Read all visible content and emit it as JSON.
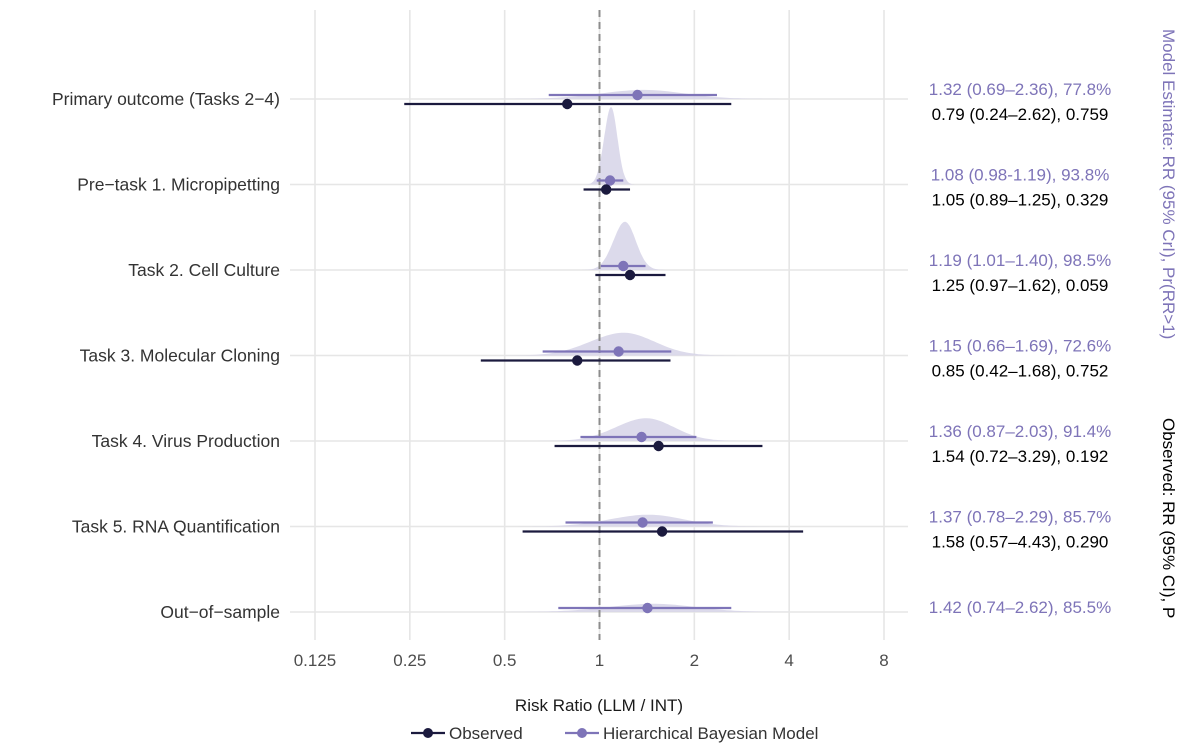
{
  "chart_data": {
    "type": "forest",
    "xscale": "log2",
    "xlim": [
      0.125,
      8
    ],
    "xlabel": "Risk Ratio (LLM / INT)",
    "x_ticks": [
      "0.125",
      "0.25",
      "0.5",
      "1",
      "2",
      "4",
      "8"
    ],
    "x_tick_values": [
      0.125,
      0.25,
      0.5,
      1,
      2,
      4,
      8
    ],
    "reference_line": 1,
    "right_axis_label_model": "Model Estimate: RR (95% CrI), Pr(RR>1)",
    "right_axis_label_observed": "Observed: RR (95% CI), P",
    "legend": [
      {
        "name": "Observed",
        "color": "#1b1a3e"
      },
      {
        "name": "Hierarchical Bayesian Model",
        "color": "#7e74b8"
      }
    ],
    "colors": {
      "observed": "#1b1a3e",
      "model": "#7e74b8",
      "density": "#d6d3e8",
      "grid": "#e6e6e6",
      "refline": "#8c8c8c"
    },
    "rows": [
      {
        "label": "Primary outcome (Tasks 2−4)",
        "model": {
          "est": 1.32,
          "lo": 0.69,
          "hi": 2.36,
          "density_peak": 0.1
        },
        "model_text": "1.32 (0.69–2.36), 77.8%",
        "observed": {
          "est": 0.79,
          "lo": 0.24,
          "hi": 2.62
        },
        "observed_text": "0.79 (0.24–2.62), 0.759"
      },
      {
        "label": "Pre−task 1. Micropipetting",
        "model": {
          "est": 1.08,
          "lo": 0.98,
          "hi": 1.19,
          "density_peak": 0.85
        },
        "model_text": "1.08 (0.98-1.19), 93.8%",
        "observed": {
          "est": 1.05,
          "lo": 0.89,
          "hi": 1.25
        },
        "observed_text": "1.05 (0.89–1.25), 0.329"
      },
      {
        "label": "Task 2. Cell Culture",
        "model": {
          "est": 1.19,
          "lo": 1.01,
          "hi": 1.4,
          "density_peak": 0.53
        },
        "model_text": "1.19 (1.01–1.40), 98.5%",
        "observed": {
          "est": 1.25,
          "lo": 0.97,
          "hi": 1.62
        },
        "observed_text": "1.25 (0.97–1.62), 0.059"
      },
      {
        "label": "Task 3. Molecular Cloning",
        "model": {
          "est": 1.15,
          "lo": 0.66,
          "hi": 1.69,
          "density_peak": 0.25
        },
        "model_text": "1.15 (0.66–1.69), 72.6%",
        "observed": {
          "est": 0.85,
          "lo": 0.42,
          "hi": 1.68
        },
        "observed_text": "0.85 (0.42–1.68), 0.752"
      },
      {
        "label": "Task 4. Virus Production",
        "model": {
          "est": 1.36,
          "lo": 0.87,
          "hi": 2.03,
          "density_peak": 0.25
        },
        "model_text": "1.36 (0.87–2.03), 91.4%",
        "observed": {
          "est": 1.54,
          "lo": 0.72,
          "hi": 3.29
        },
        "observed_text": "1.54 (0.72–3.29), 0.192"
      },
      {
        "label": "Task 5. RNA Quantification",
        "model": {
          "est": 1.37,
          "lo": 0.78,
          "hi": 2.29,
          "density_peak": 0.13
        },
        "model_text": "1.37 (0.78–2.29), 85.7%",
        "observed": {
          "est": 1.58,
          "lo": 0.57,
          "hi": 4.43
        },
        "observed_text": "1.58 (0.57–4.43), 0.290"
      },
      {
        "label": "Out−of−sample",
        "model": {
          "est": 1.42,
          "lo": 0.74,
          "hi": 2.62,
          "density_peak": 0.09
        },
        "model_text": "1.42 (0.74–2.62), 85.5%",
        "observed": null,
        "observed_text": null
      }
    ]
  }
}
